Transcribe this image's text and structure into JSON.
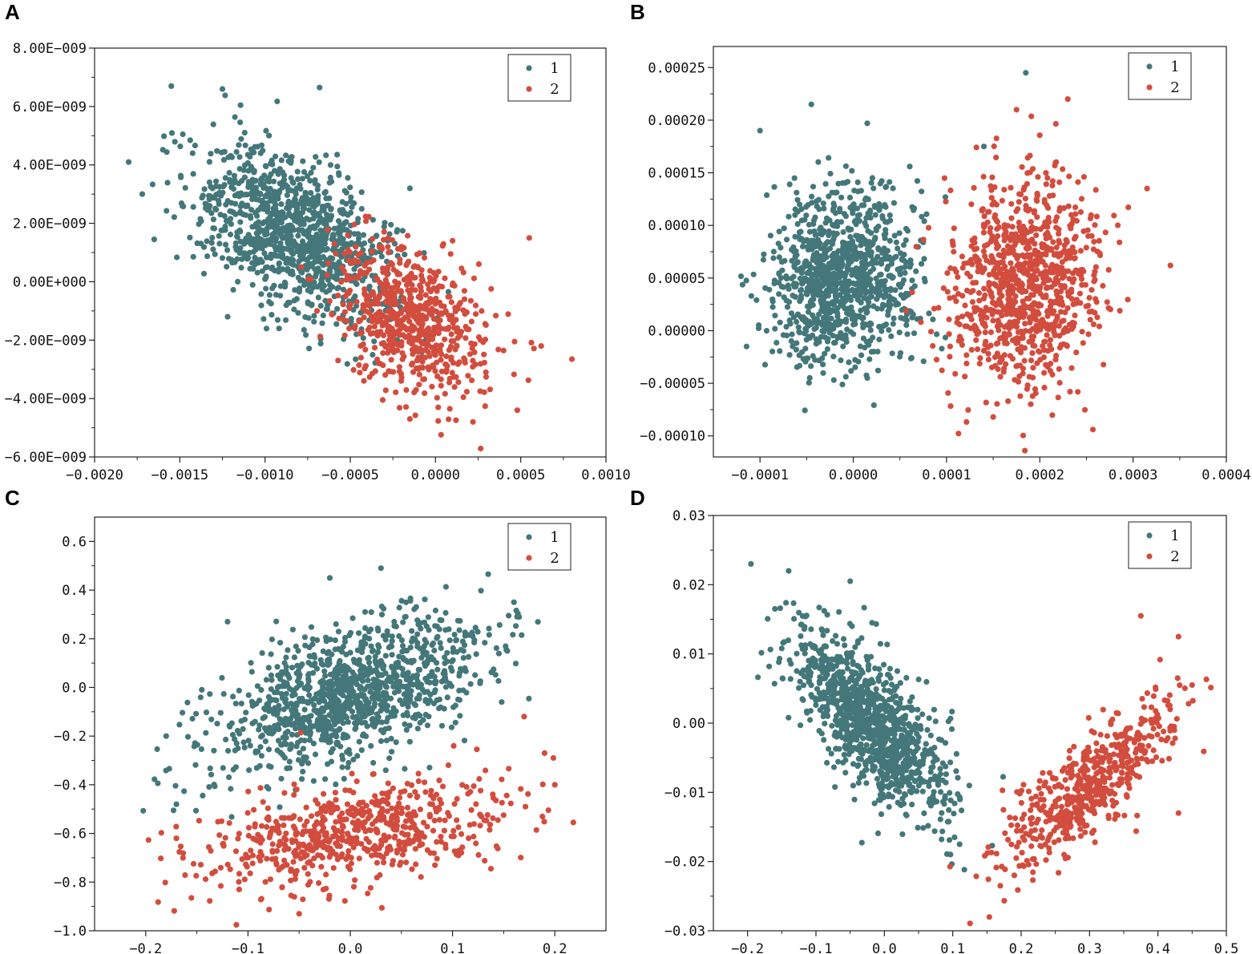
{
  "panels": [
    {
      "letter": "A"
    },
    {
      "letter": "B"
    },
    {
      "letter": "C"
    },
    {
      "letter": "D"
    }
  ],
  "colors": {
    "cluster1": "#44777a",
    "cluster2": "#d24d3e"
  },
  "chart_data": [
    {
      "panel": "A",
      "type": "scatter",
      "title": "",
      "xlabel": "",
      "ylabel": "",
      "xlim": [
        -0.002,
        0.001
      ],
      "ylim": [
        -6e-09,
        8e-09
      ],
      "xticks": [
        -0.002,
        -0.0015,
        -0.001,
        -0.0005,
        0.0,
        0.0005,
        0.001
      ],
      "xtick_labels": [
        "−0.0020",
        "−0.0015",
        "−0.0010",
        "−0.0005",
        "0.0000",
        "0.0005",
        "0.0010"
      ],
      "yticks": [
        -6e-09,
        -4e-09,
        -2e-09,
        0,
        2e-09,
        4e-09,
        6e-09,
        8e-09
      ],
      "ytick_labels": [
        "−6.00E−009",
        "−4.00E−009",
        "−2.00E−009",
        "0.00E+000",
        "2.00E−009",
        "4.00E−009",
        "6.00E−009",
        "8.00E−009"
      ],
      "legend": [
        "1",
        "2"
      ],
      "legend_position": "top-right",
      "series": [
        {
          "name": "1",
          "color": "#44777a",
          "n": 1100,
          "cx": -0.00083,
          "cy": 1.6e-09,
          "sx": 0.00028,
          "sy": 1.45e-09,
          "rho": -0.45,
          "outliers": [
            [
              -0.00155,
              6.7e-09
            ],
            [
              -0.00125,
              6.6e-09
            ],
            [
              -0.00068,
              6.65e-09
            ],
            [
              -0.0018,
              4.1e-09
            ],
            [
              -0.00172,
              3e-09
            ],
            [
              -0.00165,
              1.45e-09
            ],
            [
              -0.00015,
              3.2e-09
            ]
          ]
        },
        {
          "name": "2",
          "color": "#d24d3e",
          "n": 650,
          "cx": -0.00015,
          "cy": -1.2e-09,
          "sx": 0.00022,
          "sy": 1.3e-09,
          "rho": -0.35,
          "outliers": [
            [
              0.0008,
              -2.65e-09
            ],
            [
              0.00055,
              1.5e-09
            ],
            [
              0.00062,
              -2.2e-09
            ],
            [
              0.00048,
              -4.4e-09
            ],
            [
              0.00022,
              -4.8e-09
            ],
            [
              -0.00015,
              -4.7e-09
            ]
          ]
        }
      ]
    },
    {
      "panel": "B",
      "type": "scatter",
      "title": "",
      "xlabel": "",
      "ylabel": "",
      "xlim": [
        -0.00015,
        0.0004
      ],
      "ylim": [
        -0.00012,
        0.00027
      ],
      "xticks": [
        -0.0001,
        0.0,
        0.0001,
        0.0002,
        0.0003,
        0.0004
      ],
      "xtick_labels": [
        "−0.0001",
        "0.0000",
        "0.0001",
        "0.0002",
        "0.0003",
        "0.0004"
      ],
      "yticks": [
        -0.0001,
        -5e-05,
        0.0,
        5e-05,
        0.0001,
        0.00015,
        0.0002,
        0.00025
      ],
      "ytick_labels": [
        "−0.00010",
        "−0.00005",
        "0.00000",
        "0.00005",
        "0.00010",
        "0.00015",
        "0.00020",
        "0.00025"
      ],
      "legend": [
        "1",
        "2"
      ],
      "legend_position": "top-right",
      "series": [
        {
          "name": "1",
          "color": "#44777a",
          "n": 1000,
          "cx": -1e-05,
          "cy": 5e-05,
          "sx": 4e-05,
          "sy": 4e-05,
          "rho": 0.1,
          "outliers": [
            [
              0.000185,
              0.000245
            ],
            [
              -4.5e-05,
              0.000215
            ],
            [
              1.5e-05,
              0.000197
            ],
            [
              -0.0001,
              0.00019
            ],
            [
              1.5e-05,
              -4.5e-05
            ],
            [
              0.00014,
              0.000175
            ]
          ]
        },
        {
          "name": "2",
          "color": "#d24d3e",
          "n": 950,
          "cx": 0.000185,
          "cy": 4e-05,
          "sx": 4e-05,
          "sy": 5e-05,
          "rho": 0.05,
          "outliers": [
            [
              0.00034,
              6.2e-05
            ],
            [
              0.000315,
              0.000135
            ],
            [
              0.00023,
              0.00022
            ],
            [
              0.00015,
              -8.2e-05
            ],
            [
              0.000175,
              0.00021
            ]
          ]
        }
      ]
    },
    {
      "panel": "C",
      "type": "scatter",
      "title": "",
      "xlabel": "",
      "ylabel": "",
      "xlim": [
        -0.25,
        0.25
      ],
      "ylim": [
        -1.0,
        0.7
      ],
      "xticks": [
        -0.2,
        -0.1,
        0.0,
        0.1,
        0.2
      ],
      "xtick_labels": [
        "−0.2",
        "−0.1",
        "0.0",
        "0.1",
        "0.2"
      ],
      "yticks": [
        -1.0,
        -0.8,
        -0.6,
        -0.4,
        -0.2,
        0.0,
        0.2,
        0.4,
        0.6
      ],
      "ytick_labels": [
        "−1.0",
        "−0.8",
        "−0.6",
        "−0.4",
        "−0.2",
        "0.0",
        "0.2",
        "0.4",
        "0.6"
      ],
      "legend": [
        "1",
        "2"
      ],
      "legend_position": "top-right",
      "series": [
        {
          "name": "1",
          "color": "#44777a",
          "n": 1150,
          "cx": 0.0,
          "cy": -0.02,
          "sx": 0.065,
          "sy": 0.16,
          "rho": 0.55,
          "outliers": [
            [
              0.03,
              0.49
            ],
            [
              -0.02,
              0.45
            ],
            [
              0.16,
              0.35
            ],
            [
              -0.12,
              0.27
            ],
            [
              -0.17,
              -0.48
            ],
            [
              -0.18,
              -0.2
            ]
          ]
        },
        {
          "name": "2",
          "color": "#d24d3e",
          "n": 650,
          "cx": 0.0,
          "cy": -0.6,
          "sx": 0.075,
          "sy": 0.12,
          "rho": 0.45,
          "outliers": [
            [
              0.2,
              -0.4
            ],
            [
              0.19,
              -0.27
            ],
            [
              0.17,
              -0.12
            ],
            [
              -0.05,
              -0.93
            ],
            [
              -0.17,
              -0.62
            ]
          ]
        }
      ]
    },
    {
      "panel": "D",
      "type": "scatter",
      "title": "",
      "xlabel": "",
      "ylabel": "",
      "xlim": [
        -0.25,
        0.5
      ],
      "ylim": [
        -0.03,
        0.03
      ],
      "xticks": [
        -0.2,
        -0.1,
        0.0,
        0.1,
        0.2,
        0.3,
        0.4,
        0.5
      ],
      "xtick_labels": [
        "−0.2",
        "−0.1",
        "0.0",
        "0.1",
        "0.2",
        "0.3",
        "0.4",
        "0.5"
      ],
      "yticks": [
        -0.03,
        -0.02,
        -0.01,
        0.0,
        0.01,
        0.02,
        0.03
      ],
      "ytick_labels": [
        "−0.03",
        "−0.02",
        "−0.01",
        "0.00",
        "0.01",
        "0.02",
        "0.03"
      ],
      "legend": [
        "1",
        "2"
      ],
      "legend_position": "top-right",
      "series": [
        {
          "name": "1",
          "color": "#44777a",
          "n": 1100,
          "cx": -0.02,
          "cy": 0.0,
          "sx": 0.055,
          "sy": 0.0065,
          "rho": -0.7,
          "outliers": [
            [
              -0.195,
              0.023
            ],
            [
              -0.14,
              0.022
            ],
            [
              -0.16,
              0.0165
            ],
            [
              -0.05,
              0.0205
            ],
            [
              0.11,
              -0.0175
            ]
          ]
        },
        {
          "name": "2",
          "color": "#d24d3e",
          "n": 550,
          "cx": 0.3,
          "cy": -0.009,
          "sx": 0.065,
          "sy": 0.0065,
          "rho": 0.82,
          "outliers": [
            [
              0.43,
              0.0125
            ],
            [
              0.375,
              0.0155
            ],
            [
              0.45,
              0.0055
            ],
            [
              0.43,
              -0.013
            ],
            [
              0.19,
              -0.022
            ]
          ]
        }
      ]
    }
  ]
}
